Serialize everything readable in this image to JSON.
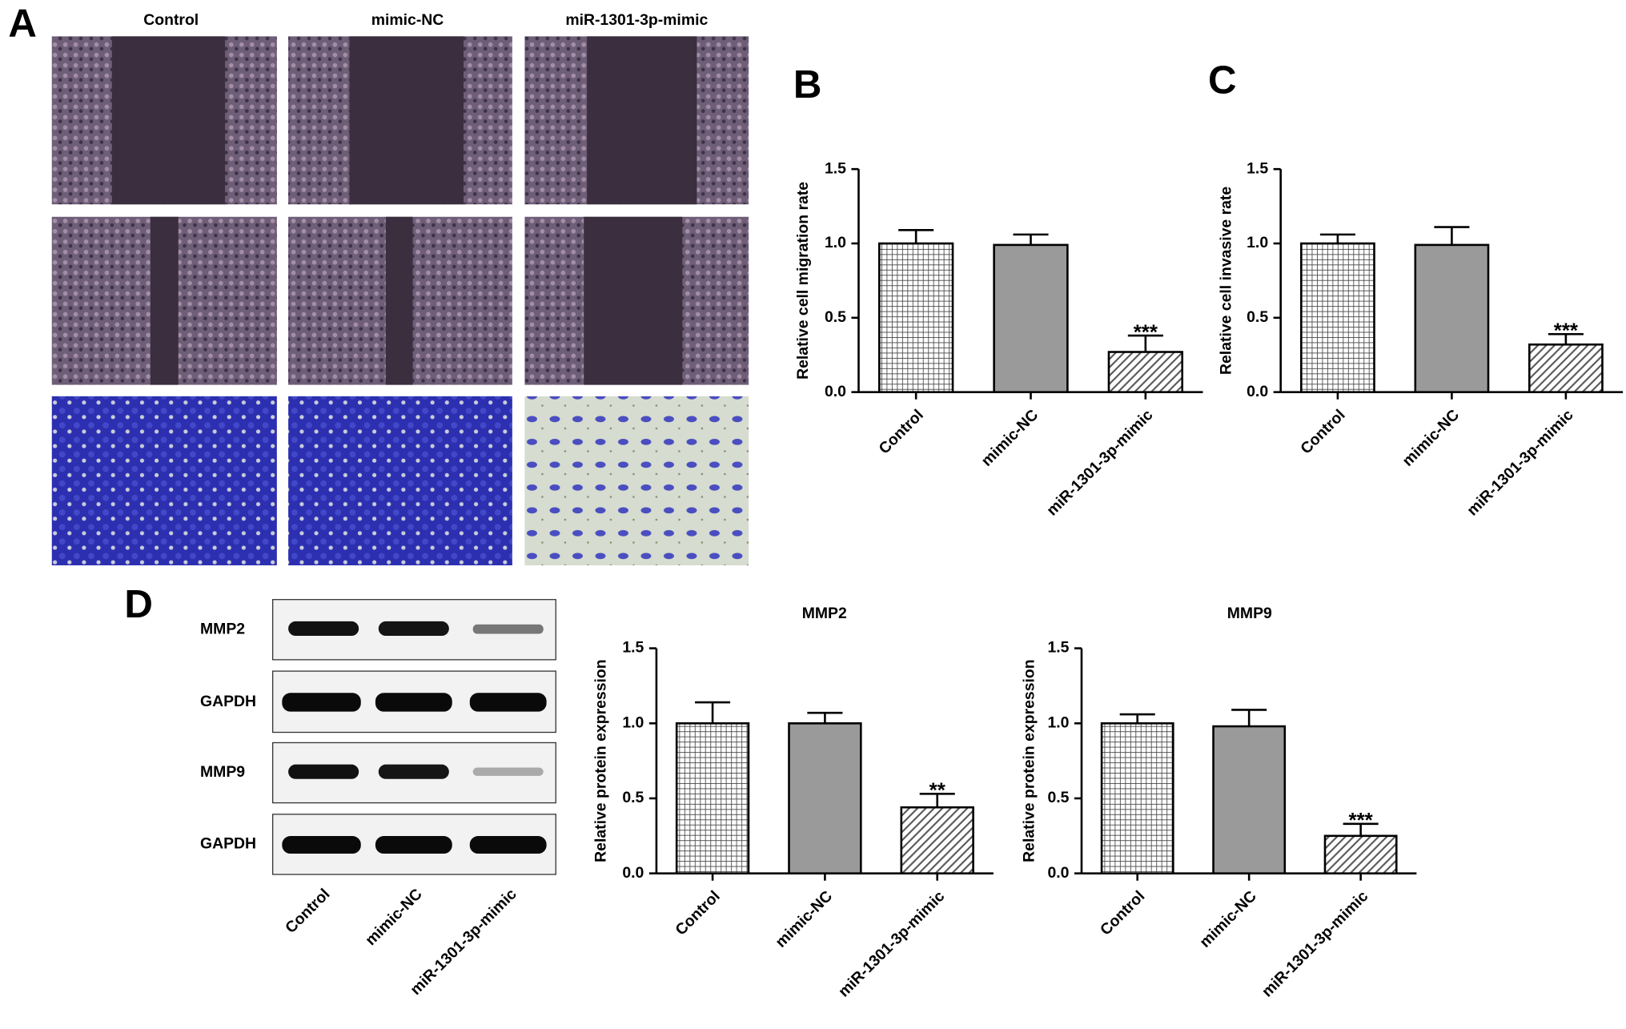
{
  "panel_labels": [
    "A",
    "B",
    "C",
    "D"
  ],
  "micrographs": {
    "columns": [
      "Control",
      "mimic-NC",
      "miR-1301-3p-mimic"
    ]
  },
  "blot": {
    "rows": [
      "MMP2",
      "GAPDH",
      "MMP9",
      "GAPDH"
    ],
    "lanes": [
      "Control",
      "mimic-NC",
      "miR-1301-3p-mimic"
    ]
  },
  "chart_data": [
    {
      "type": "bar",
      "y_label": "Relative cell migration rate",
      "categories": [
        "Control",
        "mimic-NC",
        "miR-1301-3p-mimic"
      ],
      "values": [
        1.0,
        0.99,
        0.27
      ],
      "errors": [
        0.09,
        0.07,
        0.11
      ],
      "annotations": [
        null,
        null,
        "***"
      ],
      "patterns": [
        "grid",
        "solid",
        "hatch"
      ],
      "colors": [
        "#ffffff",
        "#9a9a9a",
        "#ffffff"
      ],
      "ylim": [
        0,
        1.5
      ],
      "yticks": [
        {
          "value": 0,
          "label": "0.0"
        },
        0.5,
        {
          "value": 1,
          "label": "1.0"
        },
        1.5
      ]
    },
    {
      "type": "bar",
      "y_label": "Relative cell invasive rate",
      "categories": [
        "Control",
        "mimic-NC",
        "miR-1301-3p-mimic"
      ],
      "values": [
        1.0,
        0.99,
        0.32
      ],
      "errors": [
        0.06,
        0.12,
        0.07
      ],
      "annotations": [
        null,
        null,
        "***"
      ],
      "patterns": [
        "grid",
        "solid",
        "hatch"
      ],
      "colors": [
        "#ffffff",
        "#9a9a9a",
        "#ffffff"
      ],
      "ylim": [
        0,
        1.5
      ],
      "yticks": [
        {
          "value": 0,
          "label": "0.0"
        },
        0.5,
        {
          "value": 1,
          "label": "1.0"
        },
        1.5
      ]
    },
    {
      "type": "bar",
      "title": "MMP2",
      "y_label": "Relative protein expression",
      "categories": [
        "Control",
        "mimic-NC",
        "miR-1301-3p-mimic"
      ],
      "values": [
        1.0,
        1.0,
        0.44
      ],
      "errors": [
        0.14,
        0.07,
        0.09
      ],
      "annotations": [
        null,
        null,
        "**"
      ],
      "patterns": [
        "grid",
        "solid",
        "hatch"
      ],
      "colors": [
        "#ffffff",
        "#9a9a9a",
        "#ffffff"
      ],
      "ylim": [
        0,
        1.5
      ],
      "yticks": [
        {
          "value": 0,
          "label": "0.0"
        },
        0.5,
        {
          "value": 1,
          "label": "1.0"
        },
        1.5
      ]
    },
    {
      "type": "bar",
      "title": "MMP9",
      "y_label": "Relative protein expression",
      "categories": [
        "Control",
        "mimic-NC",
        "miR-1301-3p-mimic"
      ],
      "values": [
        1.0,
        0.98,
        0.25
      ],
      "errors": [
        0.06,
        0.11,
        0.08
      ],
      "annotations": [
        null,
        null,
        "***"
      ],
      "patterns": [
        "grid",
        "solid",
        "hatch"
      ],
      "colors": [
        "#ffffff",
        "#9a9a9a",
        "#ffffff"
      ],
      "ylim": [
        0,
        1.5
      ],
      "yticks": [
        {
          "value": 0,
          "label": "0.0"
        },
        0.5,
        {
          "value": 1,
          "label": "1.0"
        },
        1.5
      ]
    }
  ]
}
